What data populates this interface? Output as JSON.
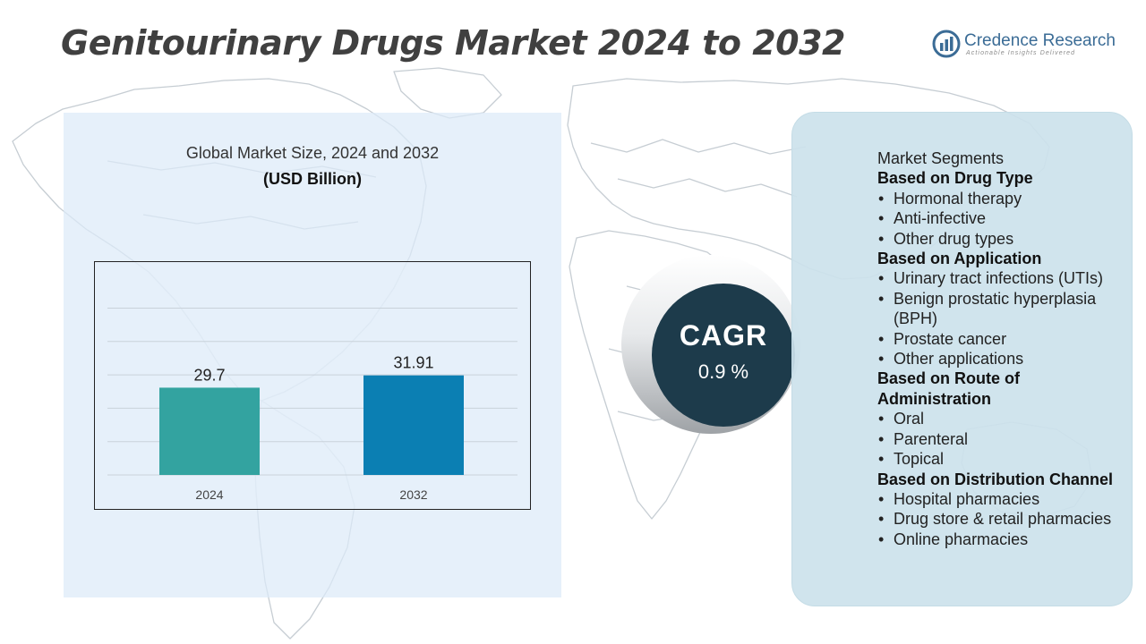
{
  "title": "Genitourinary Drugs Market 2024 to 2032",
  "brand": {
    "name": "Credence Research",
    "tagline": "Actionable Insights Delivered"
  },
  "chart": {
    "subtitle": "Global Market Size, 2024 and 2032",
    "unit": "(USD Billion)"
  },
  "chart_data": {
    "type": "bar",
    "title": "Global Market Size, 2024 and 2032",
    "ylabel": "(USD Billion)",
    "categories": [
      "2024",
      "2032"
    ],
    "values": [
      29.7,
      31.91
    ],
    "value_labels": [
      "29.7",
      "31.91"
    ],
    "colors": [
      "#33a3a0",
      "#0b7fb3"
    ],
    "grid": true,
    "legend": "none"
  },
  "cagr": {
    "label": "CAGR",
    "value": "0.9 %"
  },
  "segments": {
    "heading": "Market Segments",
    "groups": [
      {
        "title": "Based on Drug Type",
        "items": [
          "Hormonal therapy",
          "Anti-infective",
          "Other drug types"
        ]
      },
      {
        "title": "Based on Application",
        "items": [
          "Urinary tract infections (UTIs)",
          "Benign prostatic hyperplasia (BPH)",
          "Prostate cancer",
          "Other applications"
        ]
      },
      {
        "title": "Based on Route of Administration",
        "items": [
          "Oral",
          "Parenteral",
          "Topical"
        ]
      },
      {
        "title": "Based on Distribution Channel",
        "items": [
          "Hospital pharmacies",
          "Drug store & retail pharmacies",
          "Online pharmacies"
        ]
      }
    ]
  },
  "colors": {
    "title": "#404040",
    "brand": "#3b6c96",
    "cagr_circle": "#1d3b4b",
    "left_panel": "#dceaf8",
    "right_panel": "#cce2ec"
  },
  "icons": [
    "world-map-background",
    "credence-logo-icon"
  ]
}
